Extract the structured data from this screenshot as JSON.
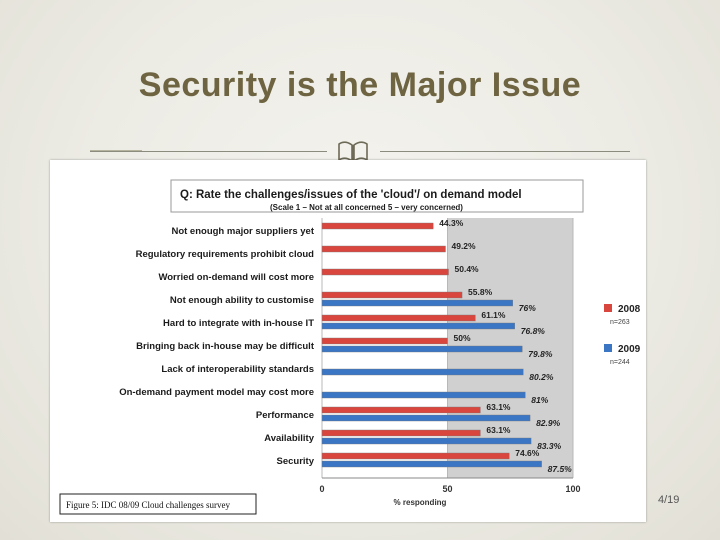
{
  "slide": {
    "title": "Security is the Major Issue",
    "page_number": "4/19"
  },
  "chart_data": {
    "type": "bar",
    "title": "Q: Rate the challenges/issues of the 'cloud'/ on demand model",
    "subtitle": "(Scale 1 – Not at all concerned 5 – very concerned)",
    "xlabel": "% responding",
    "xlim": [
      0,
      100
    ],
    "ticks": [
      "0",
      "50",
      "100"
    ],
    "caption": "Figure 5: IDC 08/09 Cloud challenges survey",
    "categories": [
      "Not enough major suppliers yet",
      "Regulatory requirements prohibit cloud",
      "Worried on-demand will cost more",
      "Not enough ability to customise",
      "Hard to integrate with in-house IT",
      "Bringing back in-house may be difficult",
      "Lack of interoperability standards",
      "On-demand payment model may cost more",
      "Performance",
      "Availability",
      "Security"
    ],
    "series": [
      {
        "name": "2008",
        "note": "n=263",
        "color": "#d9463e",
        "values": [
          44.3,
          49.2,
          50.4,
          55.8,
          61.1,
          50,
          null,
          null,
          63.1,
          63.1,
          74.6
        ],
        "labels": [
          "44.3%",
          "49.2%",
          "50.4%",
          "55.8%",
          "61.1%",
          "50%",
          "",
          "",
          "63.1%",
          "63.1%",
          "74.6%"
        ]
      },
      {
        "name": "2009",
        "note": "n=244",
        "color": "#3a76c4",
        "values": [
          null,
          null,
          null,
          76,
          76.8,
          79.8,
          80.2,
          81,
          82.9,
          83.3,
          87.5
        ],
        "labels": [
          "",
          "",
          "",
          "76%",
          "76.8%",
          "79.8%",
          "80.2%",
          "81%",
          "82.9%",
          "83.3%",
          "87.5%"
        ]
      }
    ],
    "shaded_region": [
      50,
      100
    ],
    "legend_position": "right"
  }
}
